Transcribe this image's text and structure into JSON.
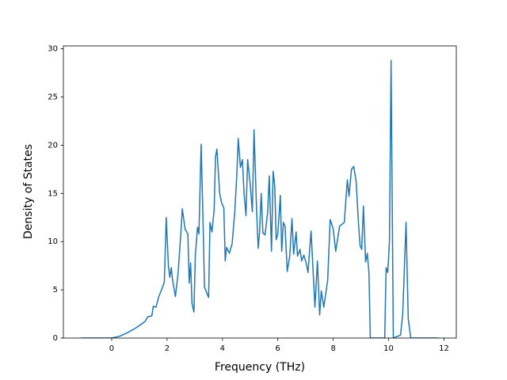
{
  "chart_data": {
    "type": "line",
    "x_label": "Frequency (THz)",
    "y_label": "Density of States",
    "color": "#1f77b4",
    "xlim": [
      -1.745,
      12.445
    ],
    "ylim": [
      0,
      30.3
    ],
    "xticks": [
      0,
      2,
      4,
      6,
      8,
      10,
      12
    ],
    "yticks": [
      0,
      5,
      10,
      15,
      20,
      25,
      30
    ],
    "x": [
      -1.1,
      0,
      0.3,
      0.6,
      0.9,
      1.2,
      1.3,
      1.45,
      1.5,
      1.6,
      1.7,
      1.8,
      1.9,
      1.97,
      2.05,
      2.1,
      2.15,
      2.2,
      2.3,
      2.4,
      2.5,
      2.55,
      2.65,
      2.75,
      2.8,
      2.85,
      2.9,
      2.97,
      3.02,
      3.1,
      3.15,
      3.23,
      3.3,
      3.35,
      3.5,
      3.55,
      3.62,
      3.7,
      3.75,
      3.8,
      3.9,
      3.97,
      4.05,
      4.1,
      4.15,
      4.25,
      4.35,
      4.45,
      4.52,
      4.57,
      4.65,
      4.72,
      4.78,
      4.85,
      4.91,
      5.0,
      5.08,
      5.14,
      5.23,
      5.29,
      5.34,
      5.4,
      5.46,
      5.54,
      5.63,
      5.69,
      5.77,
      5.83,
      5.89,
      5.94,
      6.0,
      6.09,
      6.14,
      6.2,
      6.26,
      6.34,
      6.43,
      6.51,
      6.57,
      6.66,
      6.71,
      6.8,
      6.86,
      6.94,
      7.03,
      7.09,
      7.2,
      7.34,
      7.43,
      7.51,
      7.57,
      7.66,
      7.8,
      7.89,
      8.0,
      8.09,
      8.23,
      8.4,
      8.51,
      8.57,
      8.66,
      8.74,
      8.83,
      8.91,
      8.97,
      9.03,
      9.09,
      9.17,
      9.23,
      9.29,
      9.34,
      9.86,
      9.91,
      9.97,
      10.03,
      10.09,
      10.17,
      10.43,
      10.51,
      10.63,
      10.71,
      10.8,
      11.8
    ],
    "values": [
      0,
      0,
      0.2,
      0.6,
      1.1,
      1.7,
      2.2,
      2.3,
      3.3,
      3.2,
      4.3,
      5.0,
      5.8,
      12.5,
      7.4,
      6.3,
      7.3,
      6.0,
      4.3,
      6.8,
      11.0,
      13.4,
      11.3,
      10.8,
      5.7,
      7.8,
      3.6,
      2.7,
      8.6,
      11.5,
      10.8,
      20.1,
      12.0,
      5.3,
      4.2,
      12.0,
      11.0,
      13.3,
      18.8,
      19.6,
      15.0,
      14.0,
      13.5,
      8.0,
      9.4,
      8.8,
      9.8,
      13.3,
      17.0,
      20.7,
      17.7,
      18.5,
      15.0,
      12.7,
      18.5,
      16.0,
      13.1,
      21.6,
      13.5,
      9.3,
      11.0,
      15.0,
      10.9,
      10.7,
      13.0,
      16.8,
      9.0,
      17.3,
      15.7,
      10.2,
      10.8,
      14.8,
      9.0,
      12.0,
      11.6,
      6.9,
      8.5,
      12.4,
      8.7,
      11.0,
      8.5,
      9.2,
      8.0,
      8.6,
      7.7,
      6.8,
      11.1,
      3.2,
      8.0,
      2.4,
      4.9,
      3.2,
      6.0,
      12.3,
      11.3,
      9.0,
      11.6,
      12.0,
      16.4,
      14.7,
      17.5,
      17.8,
      16.2,
      12.0,
      9.6,
      9.2,
      13.7,
      7.9,
      8.8,
      6.8,
      0,
      0,
      7.3,
      6.8,
      10.0,
      28.8,
      0,
      0.3,
      2.5,
      12.0,
      2.0,
      0,
      0
    ]
  }
}
